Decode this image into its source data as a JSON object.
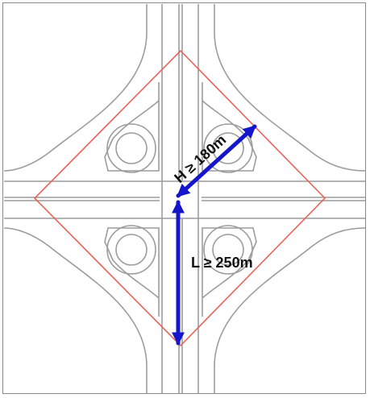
{
  "diagram": {
    "labels": {
      "h_label": "H ≥ 180m",
      "l_label": "L ≥ 250m"
    },
    "colors": {
      "road": "#9c9c9c",
      "zone_outline": "#e8645a",
      "dimension_arrow": "#1515cc"
    }
  }
}
